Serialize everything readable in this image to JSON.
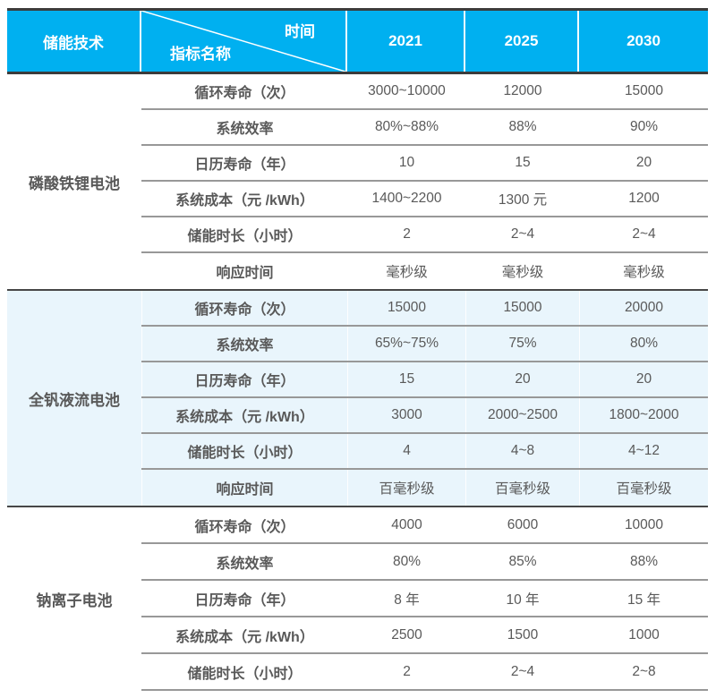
{
  "colors": {
    "header_bg": "#00B0F0",
    "header_text": "#FFFFFF",
    "highlight_bg": "#E9F5FC",
    "body_text": "#595959",
    "line_dark": "#3C3C3C",
    "line_light": "#989898"
  },
  "chart_data": {
    "type": "table",
    "header": {
      "tech_label": "储能技术",
      "time_label": "时间",
      "indicator_label": "指标名称",
      "years": [
        "2021",
        "2025",
        "2030"
      ]
    },
    "sections": [
      {
        "tech": "磷酸铁锂电池",
        "highlight": false,
        "rows": [
          {
            "label": "循环寿命（次）",
            "values": [
              "3000~10000",
              "12000",
              "15000"
            ]
          },
          {
            "label": "系统效率",
            "values": [
              "80%~88%",
              "88%",
              "90%"
            ]
          },
          {
            "label": "日历寿命（年）",
            "values": [
              "10",
              "15",
              "20"
            ]
          },
          {
            "label": "系统成本（元 /kWh）",
            "values": [
              "1400~2200",
              "1300 元",
              "1200"
            ]
          },
          {
            "label": "储能时长（小时）",
            "values": [
              "2",
              "2~4",
              "2~4"
            ]
          },
          {
            "label": "响应时间",
            "values": [
              "毫秒级",
              "毫秒级",
              "毫秒级"
            ]
          }
        ]
      },
      {
        "tech": "全钒液流电池",
        "highlight": true,
        "rows": [
          {
            "label": "循环寿命（次）",
            "values": [
              "15000",
              "15000",
              "20000"
            ]
          },
          {
            "label": "系统效率",
            "values": [
              "65%~75%",
              "75%",
              "80%"
            ]
          },
          {
            "label": "日历寿命（年）",
            "values": [
              "15",
              "20",
              "20"
            ]
          },
          {
            "label": "系统成本（元 /kWh）",
            "values": [
              "3000",
              "2000~2500",
              "1800~2000"
            ]
          },
          {
            "label": "储能时长（小时）",
            "values": [
              "4",
              "4~8",
              "4~12"
            ]
          },
          {
            "label": "响应时间",
            "values": [
              "百毫秒级",
              "百毫秒级",
              "百毫秒级"
            ]
          }
        ]
      },
      {
        "tech": "钠离子电池",
        "highlight": false,
        "rows": [
          {
            "label": "循环寿命（次）",
            "values": [
              "4000",
              "6000",
              "10000"
            ]
          },
          {
            "label": "系统效率",
            "values": [
              "80%",
              "85%",
              "88%"
            ]
          },
          {
            "label": "日历寿命（年）",
            "values": [
              "8 年",
              "10 年",
              "15 年"
            ]
          },
          {
            "label": "系统成本（元 /kWh）",
            "values": [
              "2500",
              "1500",
              "1000"
            ]
          },
          {
            "label": "储能时长（小时）",
            "values": [
              "2",
              "2~4",
              "2~8"
            ]
          }
        ]
      }
    ]
  }
}
